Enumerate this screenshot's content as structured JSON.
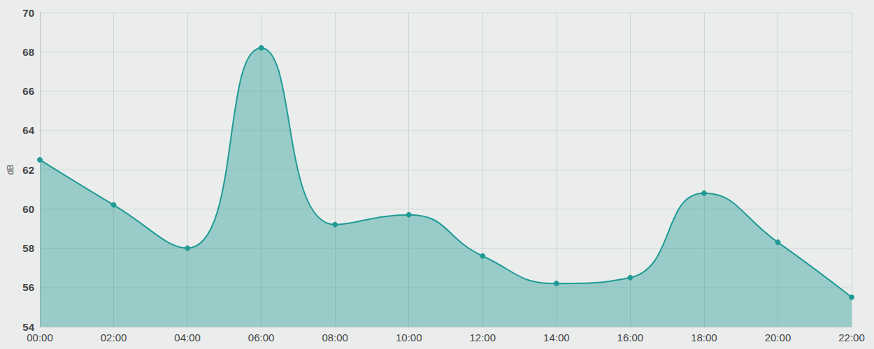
{
  "chart_data": {
    "type": "area",
    "categories": [
      "00:00",
      "02:00",
      "04:00",
      "06:00",
      "08:00",
      "10:00",
      "12:00",
      "14:00",
      "16:00",
      "18:00",
      "20:00",
      "22:00"
    ],
    "values": [
      62.5,
      60.2,
      58.0,
      68.2,
      59.2,
      59.7,
      57.6,
      56.2,
      56.5,
      60.8,
      58.3,
      55.5
    ],
    "color": "#1f9a94",
    "y_label": "dB",
    "ylim": [
      54,
      70
    ],
    "yticks": [
      54,
      56,
      58,
      60,
      62,
      64,
      66,
      68,
      70
    ],
    "grid": true,
    "marker": "circle"
  }
}
